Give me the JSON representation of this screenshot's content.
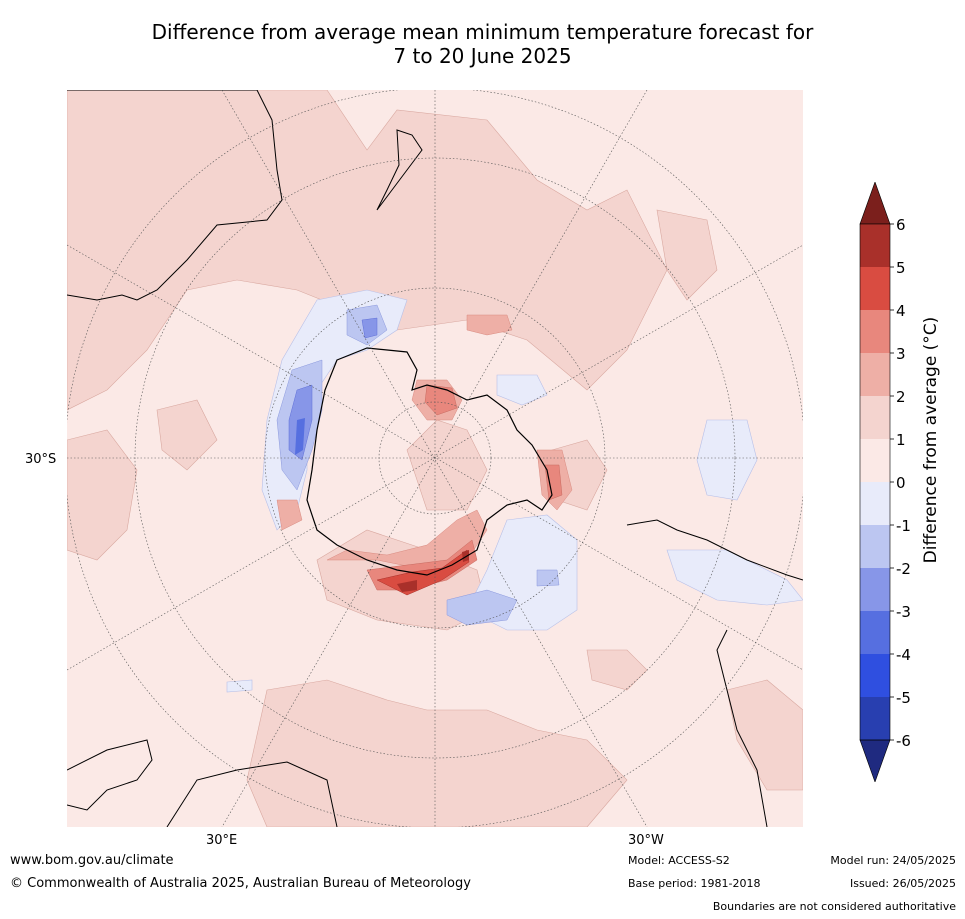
{
  "title": {
    "line1": "Difference from average mean minimum temperature forecast for",
    "line2": "7 to 20 June 2025"
  },
  "map": {
    "projection": "south-polar-stereographic",
    "ocean_color": "#fbe9e6",
    "lat_label": "30°S",
    "lon_labels": [
      "30°E",
      "30°W"
    ]
  },
  "colorbar": {
    "title": "Difference from average (°C)",
    "ticks": [
      "6",
      "5",
      "4",
      "3",
      "2",
      "1",
      "0",
      "-1",
      "-2",
      "-3",
      "-4",
      "-5",
      "-6"
    ],
    "bins": [
      {
        "range": "5 to 6",
        "color": "#a9302a"
      },
      {
        "range": "4 to 5",
        "color": "#d94c41"
      },
      {
        "range": "3 to 4",
        "color": "#e8877d"
      },
      {
        "range": "2 to 3",
        "color": "#eeafa6"
      },
      {
        "range": "1 to 2",
        "color": "#f4d4cf"
      },
      {
        "range": "0 to 1",
        "color": "#fbe9e6"
      },
      {
        "range": "-1 to 0",
        "color": "#e8ebfa"
      },
      {
        "range": "-2 to -1",
        "color": "#bcc6f1"
      },
      {
        "range": "-3 to -2",
        "color": "#8796e8"
      },
      {
        "range": "-4 to -3",
        "color": "#566fe0"
      },
      {
        "range": "-5 to -4",
        "color": "#2f4fe0"
      },
      {
        "range": "-6 to -5",
        "color": "#283fb0"
      }
    ],
    "extend_high_color": "#7b1f1c",
    "extend_low_color": "#1f2a80"
  },
  "footer": {
    "website": "www.bom.gov.au/climate",
    "copyright": "© Commonwealth of Australia 2025, Australian Bureau of Meteorology",
    "model": "Model: ACCESS-S2",
    "base_period": "Base period: 1981-2018",
    "model_run": "Model run: 24/05/2025",
    "issued": "Issued: 26/05/2025",
    "disclaimer": "Boundaries are not considered authoritative"
  }
}
